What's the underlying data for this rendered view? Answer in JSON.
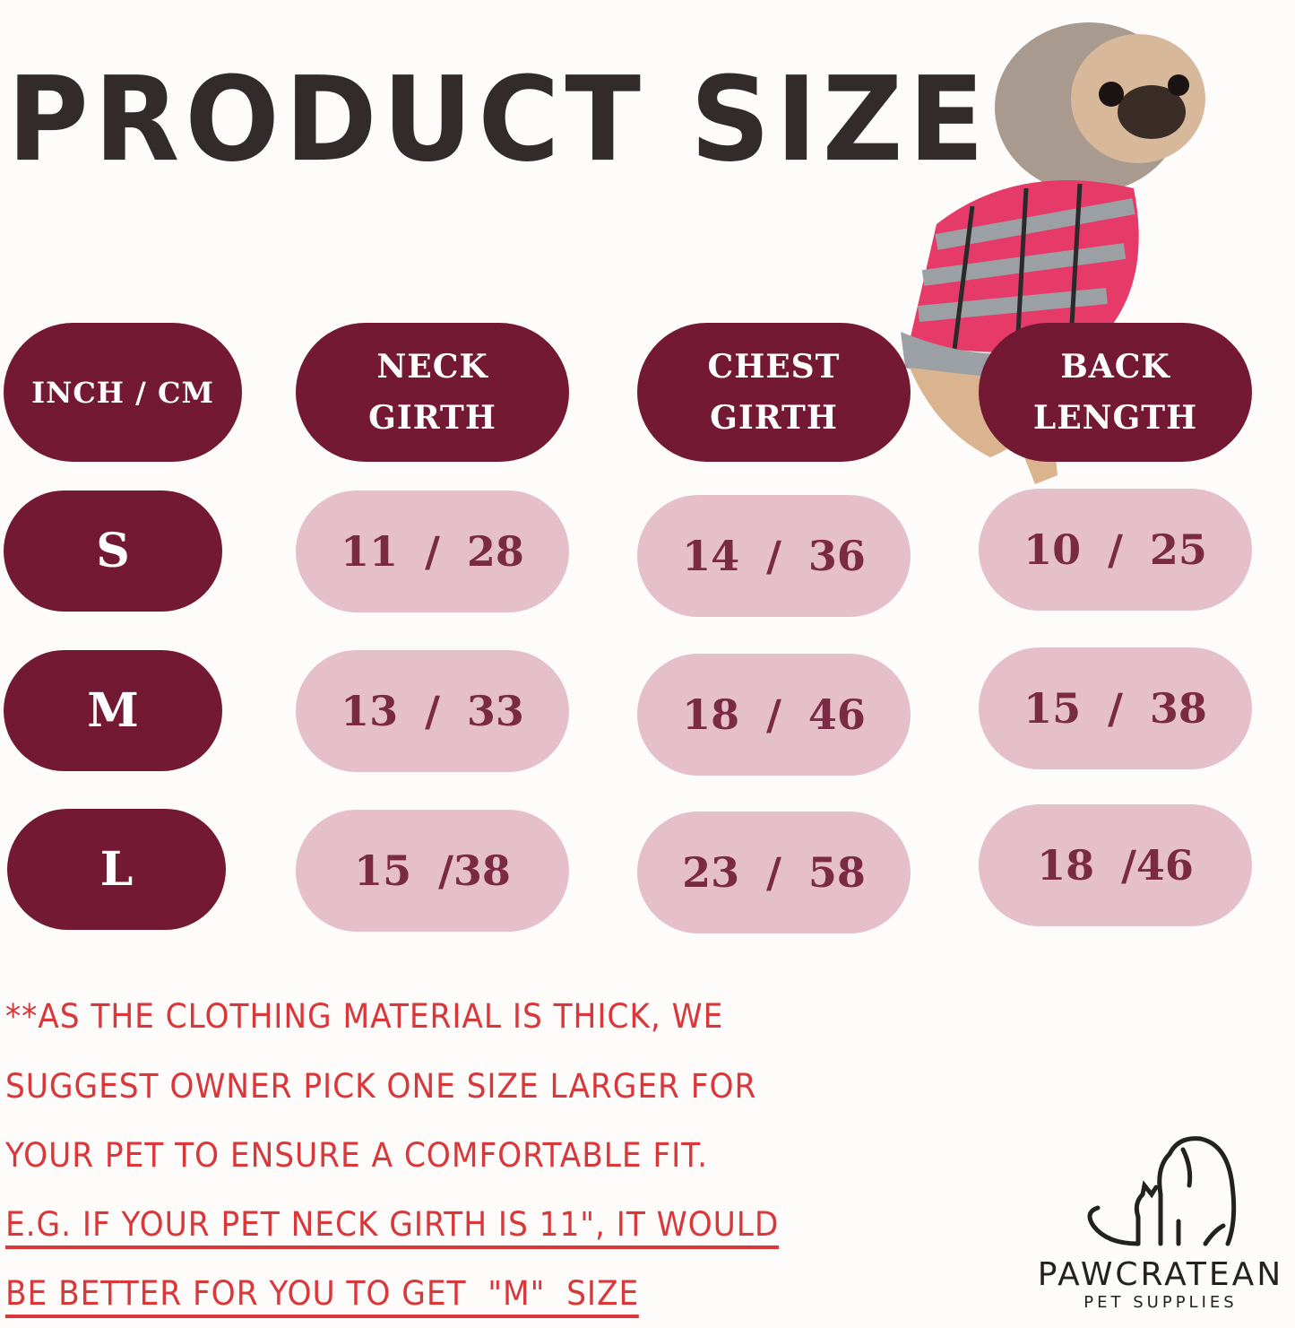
{
  "title": "PRODUCT SIZE",
  "colors": {
    "header_pill": "#741933",
    "value_pill": "#e5bfca",
    "value_text": "#7a2a44",
    "note_text": "#d9373a",
    "title_text": "#332a2b"
  },
  "table": {
    "headers": [
      {
        "line1": "INCH / CM",
        "line2": ""
      },
      {
        "line1": "NECK",
        "line2": "GIRTH"
      },
      {
        "line1": "CHEST",
        "line2": "GIRTH"
      },
      {
        "line1": "BACK",
        "line2": "LENGTH"
      }
    ],
    "rows": [
      {
        "size": "S",
        "neck": "11 / 28",
        "chest": "14 / 36",
        "back": "10 / 25"
      },
      {
        "size": "M",
        "neck": "13 / 33",
        "chest": "18 / 46",
        "back": "15 / 38"
      },
      {
        "size": "L",
        "neck": "15 /38",
        "chest": "23 / 58",
        "back": "18 /46"
      }
    ]
  },
  "note": {
    "lines": [
      "**AS THE CLOTHING MATERIAL IS THICK, WE",
      "SUGGEST OWNER PICK ONE SIZE LARGER FOR",
      "YOUR PET TO ENSURE A COMFORTABLE FIT.",
      "E.G. IF YOUR PET NECK GIRTH IS 11\", IT WOULD",
      "BE BETTER FOR YOU TO GET  \"M\"  SIZE"
    ]
  },
  "logo": {
    "brand": "PAWCRATEAN",
    "tagline": "PET SUPPLIES",
    "icon": "dog-and-cat-outline-icon"
  },
  "product_image": "pug-in-plaid-hooded-sweater"
}
